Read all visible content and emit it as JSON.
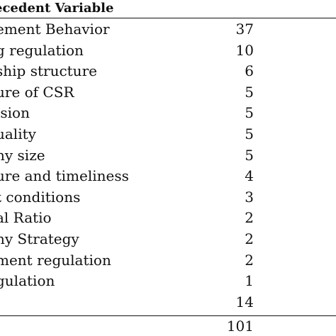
{
  "table": {
    "header_label": "ecedent Variable",
    "rows": [
      {
        "label": "ement Behavior",
        "value": "37"
      },
      {
        "label": "g regulation",
        "value": "10"
      },
      {
        "label": "ship structure",
        "value": "6"
      },
      {
        "label": "ure of CSR",
        "value": "5"
      },
      {
        "label": "ision",
        "value": "5"
      },
      {
        "label": "uality",
        "value": "5"
      },
      {
        "label": "ny size",
        "value": "5"
      },
      {
        "label": "ure and timeliness",
        "value": "4"
      },
      {
        "label": "t conditions",
        "value": "3"
      },
      {
        "label": "al Ratio",
        "value": "2"
      },
      {
        "label": "ny Strategy",
        "value": "2"
      },
      {
        "label": "ment regulation",
        "value": "2"
      },
      {
        "label": "gulation",
        "value": "1"
      },
      {
        "label": "",
        "value": "14"
      }
    ],
    "total": "101"
  }
}
